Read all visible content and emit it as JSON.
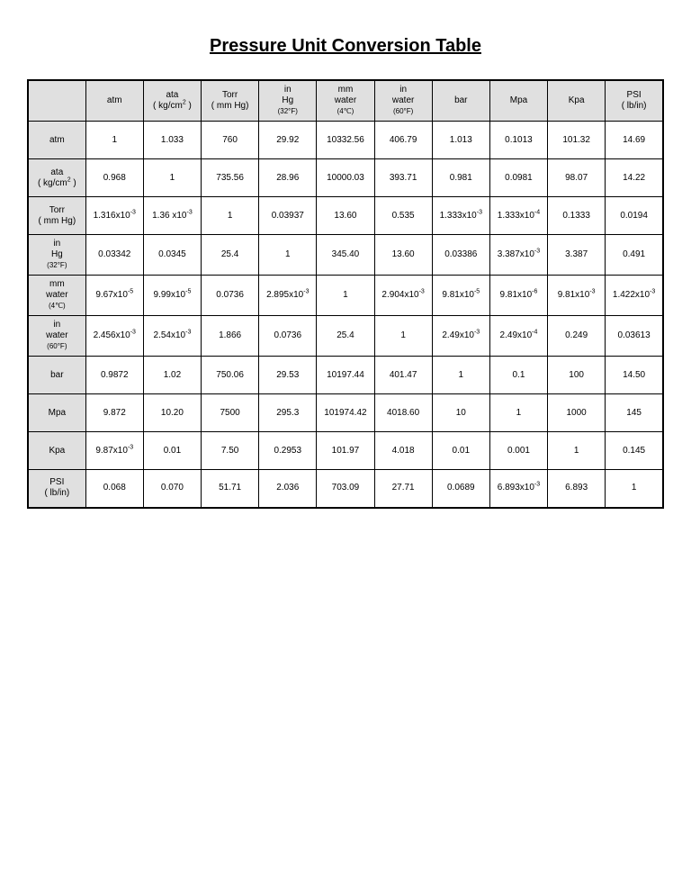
{
  "title": "Pressure Unit Conversion Table",
  "table": {
    "type": "table",
    "background_color": "#ffffff",
    "header_bg": "#e0e0e0",
    "border_color": "#000000",
    "font_family": "Arial",
    "title_fontsize": 20,
    "cell_fontsize": 10,
    "columns": [
      {
        "l1": "atm",
        "l2": "",
        "sub": ""
      },
      {
        "l1": "ata",
        "l2": "( kg/cm",
        "sup": "2",
        "l2tail": " )",
        "sub": ""
      },
      {
        "l1": "Torr",
        "l2": "( mm Hg)",
        "sub": ""
      },
      {
        "l1": "in",
        "l2": "Hg",
        "sub": "(32°F)"
      },
      {
        "l1": "mm",
        "l2": "water",
        "sub": "(4℃)"
      },
      {
        "l1": "in",
        "l2": "water",
        "sub": "(60°F)"
      },
      {
        "l1": "bar",
        "l2": "",
        "sub": ""
      },
      {
        "l1": "Mpa",
        "l2": "",
        "sub": ""
      },
      {
        "l1": "Kpa",
        "l2": "",
        "sub": ""
      },
      {
        "l1": "PSI",
        "l2": "( lb/in)",
        "sub": ""
      }
    ],
    "rows": [
      {
        "hdr": {
          "l1": "atm",
          "l2": "",
          "sub": ""
        },
        "cells": [
          {
            "t": "1"
          },
          {
            "t": "1.033"
          },
          {
            "t": "760"
          },
          {
            "t": "29.92"
          },
          {
            "t": "10332.56"
          },
          {
            "t": "406.79"
          },
          {
            "t": "1.013"
          },
          {
            "t": "0.1013"
          },
          {
            "t": "101.32"
          },
          {
            "t": "14.69"
          }
        ]
      },
      {
        "hdr": {
          "l1": "ata",
          "l2": "( kg/cm",
          "sup": "2",
          "l2tail": " )",
          "sub": ""
        },
        "cells": [
          {
            "t": "0.968"
          },
          {
            "t": "1"
          },
          {
            "t": "735.56"
          },
          {
            "t": "28.96"
          },
          {
            "t": "10000.03"
          },
          {
            "t": "393.71"
          },
          {
            "t": "0.981"
          },
          {
            "t": "0.0981"
          },
          {
            "t": "98.07"
          },
          {
            "t": "14.22"
          }
        ]
      },
      {
        "hdr": {
          "l1": "Torr",
          "l2": "( mm Hg)",
          "sub": ""
        },
        "cells": [
          {
            "t": "1.316x10",
            "e": "-3"
          },
          {
            "t": "1.36 x10",
            "e": "-3"
          },
          {
            "t": "1"
          },
          {
            "t": "0.03937"
          },
          {
            "t": "13.60"
          },
          {
            "t": "0.535"
          },
          {
            "t": "1.333x10",
            "e": "-3"
          },
          {
            "t": "1.333x10",
            "e": "-4"
          },
          {
            "t": "0.1333"
          },
          {
            "t": "0.0194"
          }
        ]
      },
      {
        "hdr": {
          "l1": "in",
          "l2": "Hg",
          "sub": "(32°F)"
        },
        "cells": [
          {
            "t": "0.03342"
          },
          {
            "t": "0.0345"
          },
          {
            "t": "25.4"
          },
          {
            "t": "1"
          },
          {
            "t": "345.40"
          },
          {
            "t": "13.60"
          },
          {
            "t": "0.03386"
          },
          {
            "t": "3.387x10",
            "e": "-3"
          },
          {
            "t": "3.387"
          },
          {
            "t": "0.491"
          }
        ]
      },
      {
        "hdr": {
          "l1": "mm",
          "l2": "water",
          "sub": "(4℃)"
        },
        "cells": [
          {
            "t": "9.67x10",
            "e": "-5"
          },
          {
            "t": "9.99x10",
            "e": "-5"
          },
          {
            "t": "0.0736"
          },
          {
            "t": "2.895x10",
            "e": "-3"
          },
          {
            "t": "1"
          },
          {
            "t": "2.904x10",
            "e": "-3"
          },
          {
            "t": "9.81x10",
            "e": "-5"
          },
          {
            "t": "9.81x10",
            "e": "-6"
          },
          {
            "t": "9.81x10",
            "e": "-3"
          },
          {
            "t": "1.422x10",
            "e": "-3"
          }
        ]
      },
      {
        "hdr": {
          "l1": "in",
          "l2": "water",
          "sub": "(60°F)"
        },
        "cells": [
          {
            "t": "2.456x10",
            "e": "-3"
          },
          {
            "t": "2.54x10",
            "e": "-3"
          },
          {
            "t": "1.866"
          },
          {
            "t": "0.0736"
          },
          {
            "t": "25.4"
          },
          {
            "t": "1"
          },
          {
            "t": "2.49x10",
            "e": "-3"
          },
          {
            "t": "2.49x10",
            "e": "-4"
          },
          {
            "t": "0.249"
          },
          {
            "t": "0.03613"
          }
        ]
      },
      {
        "hdr": {
          "l1": "bar",
          "l2": "",
          "sub": ""
        },
        "cells": [
          {
            "t": "0.9872"
          },
          {
            "t": "1.02"
          },
          {
            "t": "750.06"
          },
          {
            "t": "29.53"
          },
          {
            "t": "10197.44"
          },
          {
            "t": "401.47"
          },
          {
            "t": "1"
          },
          {
            "t": "0.1"
          },
          {
            "t": "100"
          },
          {
            "t": "14.50"
          }
        ]
      },
      {
        "hdr": {
          "l1": "Mpa",
          "l2": "",
          "sub": ""
        },
        "cells": [
          {
            "t": "9.872"
          },
          {
            "t": "10.20"
          },
          {
            "t": "7500"
          },
          {
            "t": "295.3"
          },
          {
            "t": "101974.42"
          },
          {
            "t": "4018.60"
          },
          {
            "t": "10"
          },
          {
            "t": "1"
          },
          {
            "t": "1000"
          },
          {
            "t": "145"
          }
        ]
      },
      {
        "hdr": {
          "l1": "Kpa",
          "l2": "",
          "sub": ""
        },
        "cells": [
          {
            "t": "9.87x10",
            "e": "-3"
          },
          {
            "t": "0.01"
          },
          {
            "t": "7.50"
          },
          {
            "t": "0.2953"
          },
          {
            "t": "101.97"
          },
          {
            "t": "4.018"
          },
          {
            "t": "0.01"
          },
          {
            "t": "0.001"
          },
          {
            "t": "1"
          },
          {
            "t": "0.145"
          }
        ]
      },
      {
        "hdr": {
          "l1": "PSI",
          "l2": "( lb/in)",
          "sub": ""
        },
        "cells": [
          {
            "t": "0.068"
          },
          {
            "t": "0.070"
          },
          {
            "t": "51.71"
          },
          {
            "t": "2.036"
          },
          {
            "t": "703.09"
          },
          {
            "t": "27.71"
          },
          {
            "t": "0.0689"
          },
          {
            "t": "6.893x10",
            "e": "-3"
          },
          {
            "t": "6.893"
          },
          {
            "t": "1"
          }
        ]
      }
    ]
  }
}
